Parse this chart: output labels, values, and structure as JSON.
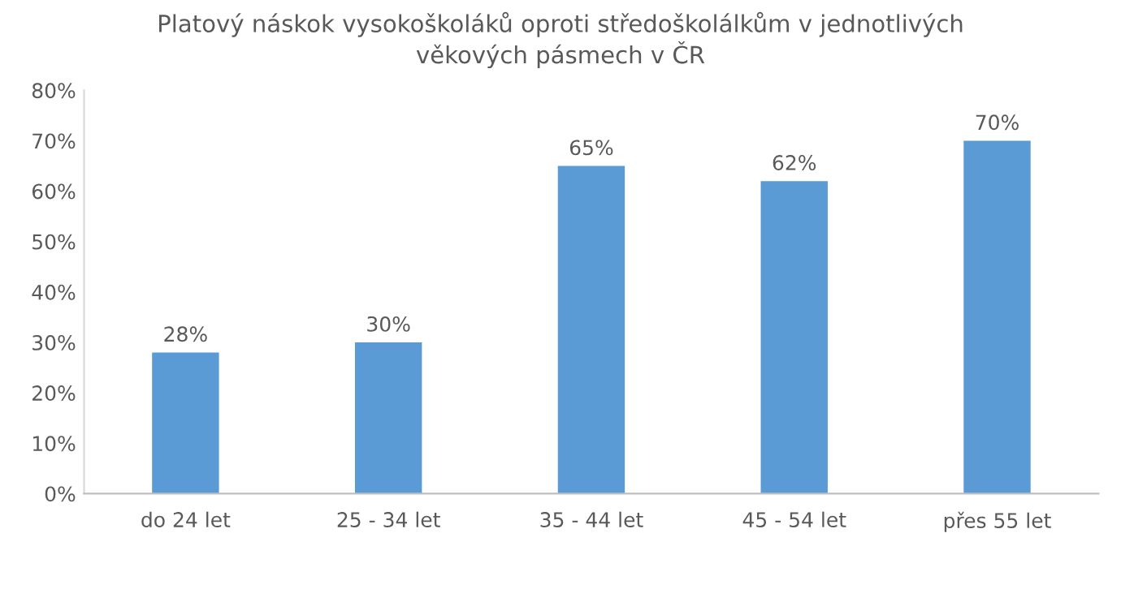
{
  "chart_data": {
    "type": "bar",
    "title": "Platový náskok vysokoškoláků oproti středoškolálkům v jednotlivých\nvěkových pásmech v ČR",
    "categories": [
      "do 24 let",
      "25 - 34 let",
      "35 - 44 let",
      "45 - 54 let",
      "přes 55 let"
    ],
    "values": [
      28,
      30,
      65,
      62,
      70
    ],
    "color": "#5b9bd5",
    "value_labels": [
      "28%",
      "30%",
      "65%",
      "62%",
      "70%"
    ],
    "ylim": [
      0,
      80
    ],
    "yticks": [
      {
        "value": 0,
        "label": "0%"
      },
      {
        "value": 10,
        "label": "10%"
      },
      {
        "value": 20,
        "label": "20%"
      },
      {
        "value": 30,
        "label": "30%"
      },
      {
        "value": 40,
        "label": "40%"
      },
      {
        "value": 50,
        "label": "50%"
      },
      {
        "value": 60,
        "label": "60%"
      },
      {
        "value": 70,
        "label": "70%"
      },
      {
        "value": 80,
        "label": "80%"
      }
    ],
    "grid": false,
    "legend": false
  }
}
